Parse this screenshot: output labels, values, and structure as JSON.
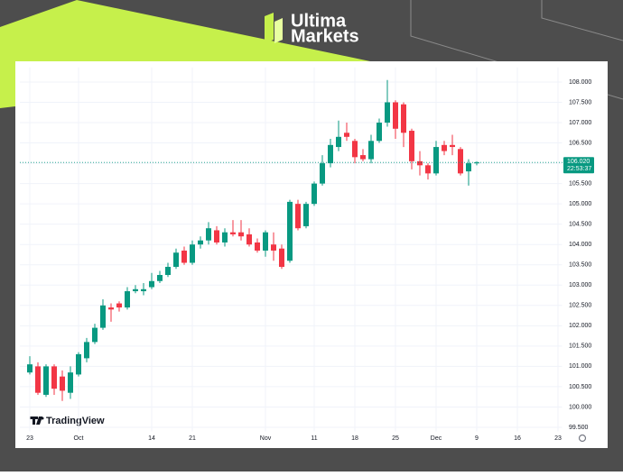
{
  "logo": {
    "line1": "Ultima",
    "line2": "Markets"
  },
  "chart_data": {
    "type": "candlestick",
    "watermark": "TradingView",
    "categories": [
      "23",
      null,
      null,
      null,
      null,
      null,
      "Oct",
      null,
      null,
      null,
      null,
      null,
      null,
      null,
      null,
      "14",
      null,
      null,
      null,
      null,
      "21",
      null,
      null,
      null,
      null,
      null,
      null,
      null,
      null,
      "Nov",
      null,
      null,
      null,
      null,
      null,
      "11",
      null,
      null,
      null,
      null,
      "18",
      null,
      null,
      null,
      null,
      "25",
      null,
      null,
      null,
      null,
      "Dec",
      null,
      null,
      null,
      null,
      "9",
      null,
      null,
      null,
      null,
      "16",
      null,
      null,
      null,
      null,
      "23"
    ],
    "open": [
      100.85,
      101.0,
      100.3,
      101.0,
      100.75,
      100.35,
      100.8,
      101.2,
      101.6,
      101.95,
      102.45,
      102.55,
      102.45,
      102.85,
      102.85,
      102.95,
      103.1,
      103.25,
      103.45,
      103.85,
      103.55,
      104.0,
      104.1,
      104.35,
      104.05,
      104.3,
      104.3,
      104.25,
      104.05,
      103.85,
      104.0,
      103.9,
      103.6,
      105.0,
      104.45,
      105.0,
      105.5,
      106.0,
      106.4,
      106.75,
      106.55,
      106.2,
      106.1,
      106.55,
      107.0,
      107.5,
      107.45,
      106.8,
      106.05,
      105.95,
      105.75,
      106.45,
      106.45,
      106.35,
      105.8,
      106.0,
      null,
      null,
      null,
      null,
      null,
      null,
      null,
      null,
      null,
      null
    ],
    "high": [
      101.25,
      101.1,
      101.05,
      101.05,
      100.9,
      101.0,
      101.35,
      101.7,
      102.05,
      102.65,
      102.55,
      102.6,
      102.95,
      103.0,
      103.05,
      103.3,
      103.35,
      103.55,
      103.9,
      103.95,
      104.1,
      104.2,
      104.55,
      104.45,
      104.4,
      104.6,
      104.6,
      104.4,
      104.15,
      104.35,
      104.3,
      104.0,
      105.1,
      105.1,
      105.05,
      105.55,
      106.2,
      106.6,
      107.05,
      107.0,
      106.6,
      106.35,
      106.7,
      107.1,
      108.05,
      107.55,
      107.5,
      106.85,
      106.3,
      106.0,
      106.55,
      106.55,
      106.7,
      106.4,
      106.1,
      106.05,
      null,
      null,
      null,
      null,
      null,
      null,
      null,
      null,
      null,
      null
    ],
    "low": [
      100.8,
      100.3,
      100.25,
      100.3,
      100.15,
      100.2,
      100.75,
      101.1,
      101.55,
      101.9,
      102.1,
      102.35,
      102.4,
      102.8,
      102.75,
      102.9,
      103.05,
      103.2,
      103.4,
      103.5,
      103.5,
      103.9,
      104.0,
      104.0,
      103.95,
      104.2,
      104.1,
      103.95,
      103.8,
      103.7,
      103.6,
      103.4,
      103.55,
      104.35,
      104.4,
      104.95,
      105.45,
      105.9,
      106.3,
      106.55,
      106.0,
      106.05,
      106.0,
      106.5,
      106.9,
      106.6,
      106.4,
      105.85,
      105.7,
      105.6,
      105.7,
      106.2,
      106.2,
      105.7,
      105.45,
      105.95,
      null,
      null,
      null,
      null,
      null,
      null,
      null,
      null,
      null,
      null
    ],
    "close": [
      101.05,
      100.35,
      101.0,
      100.45,
      100.4,
      100.85,
      101.3,
      101.6,
      101.95,
      102.5,
      102.4,
      102.45,
      102.85,
      102.9,
      102.9,
      103.1,
      103.25,
      103.45,
      103.8,
      103.55,
      104.0,
      104.1,
      104.4,
      104.05,
      104.3,
      104.25,
      104.2,
      104.0,
      103.85,
      104.3,
      103.85,
      103.45,
      105.05,
      104.4,
      105.0,
      105.5,
      106.0,
      106.45,
      106.65,
      106.65,
      106.15,
      106.1,
      106.55,
      107.0,
      107.5,
      106.85,
      106.75,
      106.05,
      105.95,
      105.75,
      106.4,
      106.3,
      106.4,
      105.75,
      106.0,
      106.02,
      null,
      null,
      null,
      null,
      null,
      null,
      null,
      null,
      null,
      null
    ],
    "up_color": "#089981",
    "down_color": "#f23645",
    "last_price": {
      "value": 106.02,
      "label": "106.020"
    },
    "countdown": "22:53:37",
    "ylim": [
      99.4,
      108.25
    ],
    "yticks": [
      {
        "value": 99.5,
        "label": "99.500"
      },
      {
        "value": 100,
        "label": "100.000"
      },
      {
        "value": 100.5,
        "label": "100.500"
      },
      {
        "value": 101,
        "label": "101.000"
      },
      {
        "value": 101.5,
        "label": "101.500"
      },
      {
        "value": 102,
        "label": "102.000"
      },
      {
        "value": 102.5,
        "label": "102.500"
      },
      {
        "value": 103,
        "label": "103.000"
      },
      {
        "value": 103.5,
        "label": "103.500"
      },
      {
        "value": 104,
        "label": "104.000"
      },
      {
        "value": 104.5,
        "label": "104.500"
      },
      {
        "value": 105,
        "label": "105.000"
      },
      {
        "value": 105.5,
        "label": "105.500"
      },
      {
        "value": 106,
        "label": "106.000"
      },
      {
        "value": 106.5,
        "label": "106.500"
      },
      {
        "value": 107,
        "label": "107.000"
      },
      {
        "value": 107.5,
        "label": "107.500"
      },
      {
        "value": 108,
        "label": "108.000"
      }
    ],
    "grid": true
  }
}
